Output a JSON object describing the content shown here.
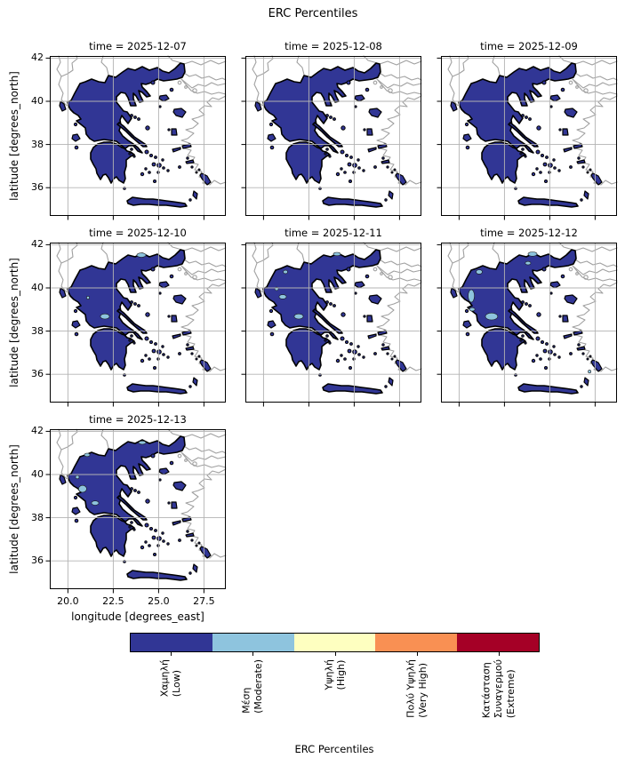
{
  "figure": {
    "title": "ERC Percentiles"
  },
  "axes": {
    "xlabel": "longitude [degrees_east]",
    "ylabel": "latitude [degrees_north]",
    "x_ticks": [
      "20.0",
      "22.5",
      "25.0",
      "27.5"
    ],
    "y_ticks": [
      "42",
      "40",
      "38",
      "36"
    ]
  },
  "colorbar": {
    "label": "ERC Percentiles",
    "categories": [
      {
        "label": "Χαμηλή\n(Low)",
        "color": "#313695"
      },
      {
        "label": "Μέση\n(Moderate)",
        "color": "#8ec4de"
      },
      {
        "label": "Υψηλή\n(High)",
        "color": "#feffc0"
      },
      {
        "label": "Πολύ Υψηλή\n(Very High)",
        "color": "#f99053"
      },
      {
        "label": "Κατάσταση\nΣυναγερμού\n(Extreme)",
        "color": "#a50026"
      }
    ]
  },
  "colors": {
    "land_low": "#313695",
    "moderate_patch": "#8ec4de",
    "coastline": "#000000",
    "neighbor_coast": "#a0a0a0",
    "gridline": "#b3b3b3"
  },
  "chart_data": {
    "type": "heatmap",
    "subtype": "faceted-categorical-choropleth-map",
    "title": "ERC Percentiles",
    "xlabel": "longitude [degrees_east]",
    "ylabel": "latitude [degrees_north]",
    "x_ticks": [
      20.0,
      22.5,
      25.0,
      27.5
    ],
    "y_ticks": [
      42,
      40,
      38,
      36
    ],
    "x_range": [
      19.0,
      28.7
    ],
    "y_range": [
      34.7,
      42.1
    ],
    "grid": true,
    "legend_position": "bottom-colorbar",
    "category_labels": [
      "Χαμηλή (Low)",
      "Μέση (Moderate)",
      "Υψηλή (High)",
      "Πολύ Υψηλή (Very High)",
      "Κατάσταση Συναγερμού (Extreme)"
    ],
    "category_colors": [
      "#313695",
      "#8ec4de",
      "#feffc0",
      "#f99053",
      "#a50026"
    ],
    "panels": [
      {
        "title": "time = 2025-12-07",
        "dominant_category": "Χαμηλή (Low)",
        "moderate_patches": []
      },
      {
        "title": "time = 2025-12-08",
        "dominant_category": "Χαμηλή (Low)",
        "moderate_patches": []
      },
      {
        "title": "time = 2025-12-09",
        "dominant_category": "Χαμηλή (Low)",
        "moderate_patches": []
      },
      {
        "title": "time = 2025-12-10",
        "dominant_category": "Χαμηλή (Low)",
        "moderate_patches": [
          {
            "lon": 24.05,
            "lat": 41.52,
            "rlon": 0.25,
            "rlat": 0.1
          },
          {
            "lon": 21.11,
            "lat": 39.55,
            "rlon": 0.08,
            "rlat": 0.07
          },
          {
            "lon": 22.04,
            "lat": 38.68,
            "rlon": 0.25,
            "rlat": 0.12
          }
        ]
      },
      {
        "title": "time = 2025-12-11",
        "dominant_category": "Χαμηλή (Low)",
        "moderate_patches": [
          {
            "lon": 24.05,
            "lat": 41.57,
            "rlon": 0.2,
            "rlat": 0.08
          },
          {
            "lon": 21.21,
            "lat": 40.74,
            "rlon": 0.12,
            "rlat": 0.08
          },
          {
            "lon": 20.72,
            "lat": 39.96,
            "rlon": 0.1,
            "rlat": 0.08
          },
          {
            "lon": 21.06,
            "lat": 39.59,
            "rlon": 0.2,
            "rlat": 0.1
          },
          {
            "lon": 21.94,
            "lat": 38.68,
            "rlon": 0.25,
            "rlat": 0.12
          }
        ]
      },
      {
        "title": "time = 2025-12-12",
        "dominant_category": "Χαμηλή (Low)",
        "moderate_patches": [
          {
            "lon": 24.05,
            "lat": 41.57,
            "rlon": 0.25,
            "rlat": 0.1
          },
          {
            "lon": 23.8,
            "lat": 41.15,
            "rlon": 0.15,
            "rlat": 0.08
          },
          {
            "lon": 21.11,
            "lat": 40.74,
            "rlon": 0.17,
            "rlat": 0.1
          },
          {
            "lon": 20.67,
            "lat": 39.63,
            "rlon": 0.17,
            "rlat": 0.29
          },
          {
            "lon": 20.72,
            "lat": 39.01,
            "rlon": 0.15,
            "rlat": 0.08
          },
          {
            "lon": 21.79,
            "lat": 38.68,
            "rlon": 0.34,
            "rlat": 0.16
          },
          {
            "lon": 27.19,
            "lat": 36.13,
            "rlon": 0.08,
            "rlat": 0.07
          }
        ]
      },
      {
        "title": "time = 2025-12-13",
        "dominant_category": "Χαμηλή (Low)",
        "moderate_patches": [
          {
            "lon": 24.1,
            "lat": 41.48,
            "rlon": 0.2,
            "rlat": 0.08
          },
          {
            "lon": 21.06,
            "lat": 40.91,
            "rlon": 0.15,
            "rlat": 0.08
          },
          {
            "lon": 20.52,
            "lat": 39.88,
            "rlon": 0.1,
            "rlat": 0.08
          },
          {
            "lon": 20.81,
            "lat": 39.34,
            "rlon": 0.22,
            "rlat": 0.16
          },
          {
            "lon": 21.5,
            "lat": 38.68,
            "rlon": 0.2,
            "rlat": 0.1
          }
        ]
      }
    ]
  }
}
